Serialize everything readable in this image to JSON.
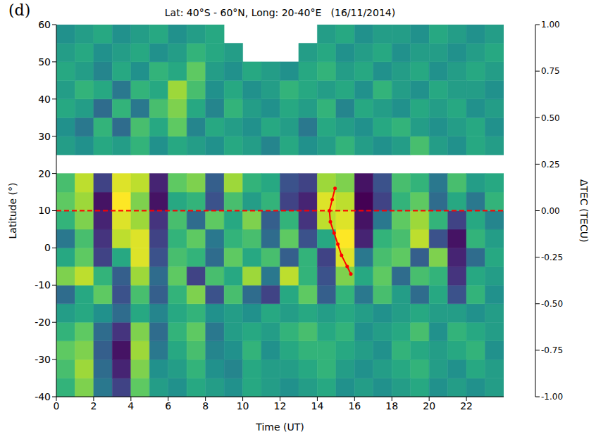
{
  "chart_data": {
    "type": "heatmap",
    "panel_label": "(d)",
    "title": "Lat: 40°S - 60°N, Long: 20-40°E   (16/11/2014)",
    "x_label": "Time (UT)",
    "y_label": "Latitude (°)",
    "xlim": [
      0,
      24
    ],
    "xticks": [
      0,
      2,
      4,
      6,
      8,
      10,
      12,
      14,
      16,
      18,
      20,
      22
    ],
    "ylim": [
      -40,
      60
    ],
    "yticks": [
      -40,
      -30,
      -20,
      -10,
      0,
      10,
      20,
      30,
      40,
      50,
      60
    ],
    "time_bins": [
      0,
      1,
      2,
      3,
      4,
      5,
      6,
      7,
      8,
      9,
      10,
      11,
      12,
      13,
      14,
      15,
      16,
      17,
      18,
      19,
      20,
      21,
      22,
      23,
      24
    ],
    "latitude_bins": [
      -40,
      -35,
      -30,
      -25,
      -20,
      -15,
      -10,
      -5,
      0,
      5,
      10,
      15,
      20,
      25,
      30,
      35,
      40,
      45,
      50,
      55,
      60
    ],
    "cells": [
      [
        0.3,
        0.6,
        -0.2,
        -0.6,
        0.5,
        0.1,
        0.0,
        0.2,
        0.1,
        0.0,
        0.2,
        0.1,
        0.0,
        0.1,
        0.2,
        0.0,
        0.1,
        0.0,
        0.1,
        0.2,
        0.0,
        0.1,
        0.0,
        0.1
      ],
      [
        0.4,
        0.7,
        -0.3,
        -0.8,
        0.6,
        0.0,
        0.1,
        0.3,
        0.0,
        -0.1,
        0.2,
        0.1,
        0.1,
        0.2,
        0.3,
        0.1,
        0.0,
        0.1,
        0.2,
        0.3,
        0.1,
        0.0,
        0.2,
        0.1
      ],
      [
        0.5,
        0.6,
        -0.4,
        -0.9,
        0.7,
        -0.2,
        0.2,
        0.4,
        -0.1,
        0.0,
        0.3,
        0.0,
        0.2,
        0.3,
        0.3,
        0.2,
        0.1,
        0.0,
        0.3,
        0.2,
        0.1,
        0.2,
        0.3,
        0.0
      ],
      [
        0.3,
        0.5,
        -0.3,
        -0.7,
        0.6,
        -0.3,
        0.3,
        0.5,
        -0.2,
        0.1,
        0.2,
        0.1,
        0.3,
        0.4,
        0.2,
        0.3,
        0.0,
        0.1,
        0.2,
        0.4,
        0.0,
        0.3,
        0.2,
        0.1
      ],
      [
        0.1,
        0.2,
        0.0,
        -0.3,
        0.2,
        -0.1,
        0.2,
        0.3,
        0.0,
        0.1,
        0.0,
        0.2,
        0.1,
        0.2,
        0.1,
        0.2,
        0.1,
        0.0,
        0.1,
        0.2,
        0.1,
        0.1,
        0.0,
        0.1
      ],
      [
        -0.3,
        0.2,
        0.5,
        -0.5,
        0.4,
        -0.4,
        0.3,
        0.6,
        -0.5,
        0.4,
        -0.3,
        -0.6,
        0.2,
        0.5,
        -0.4,
        0.3,
        -0.2,
        0.4,
        0.1,
        -0.3,
        0.2,
        -0.5,
        0.3,
        0.0
      ],
      [
        0.6,
        0.8,
        0.3,
        -0.4,
        0.7,
        -0.3,
        0.5,
        -0.6,
        0.4,
        0.2,
        0.7,
        -0.2,
        0.8,
        0.3,
        -0.5,
        0.6,
        0.2,
        0.5,
        -0.3,
        0.4,
        0.3,
        -0.7,
        0.2,
        0.1
      ],
      [
        0.2,
        0.5,
        -0.6,
        0.2,
        0.9,
        -0.5,
        0.4,
        0.3,
        -0.3,
        0.5,
        0.2,
        0.4,
        -0.4,
        0.3,
        -0.6,
        0.9,
        -0.2,
        0.4,
        0.5,
        -0.4,
        0.6,
        -0.8,
        -0.3,
        0.2
      ],
      [
        -0.2,
        0.4,
        -0.7,
        0.8,
        0.9,
        -0.6,
        0.3,
        0.5,
        -0.2,
        0.3,
        0.4,
        -0.3,
        0.5,
        -0.5,
        0.2,
        1.0,
        -0.8,
        0.3,
        0.4,
        0.8,
        -0.5,
        -0.9,
        0.3,
        0.1
      ],
      [
        0.3,
        0.6,
        -0.8,
        0.9,
        0.7,
        -0.7,
        0.4,
        -0.3,
        0.5,
        0.2,
        0.6,
        -0.4,
        0.3,
        -0.7,
        0.8,
        0.9,
        -0.9,
        -0.2,
        0.5,
        0.7,
        0.3,
        -0.6,
        0.2,
        -0.1
      ],
      [
        0.5,
        0.7,
        -0.9,
        1.0,
        0.6,
        -0.9,
        0.2,
        0.3,
        -0.5,
        0.4,
        0.1,
        0.3,
        -0.6,
        -0.8,
        0.9,
        0.8,
        -1.0,
        -0.6,
        0.3,
        0.5,
        -0.3,
        0.2,
        -0.2,
        0.3
      ],
      [
        0.4,
        0.8,
        -0.6,
        0.9,
        0.8,
        -0.8,
        0.5,
        0.6,
        -0.4,
        0.7,
        0.3,
        0.2,
        -0.5,
        -0.6,
        0.7,
        0.6,
        -0.9,
        -0.5,
        0.4,
        0.3,
        -0.2,
        0.4,
        0.1,
        0.2
      ],
      [
        null,
        null,
        null,
        null,
        null,
        null,
        null,
        null,
        null,
        null,
        null,
        null,
        null,
        null,
        null,
        null,
        null,
        null,
        null,
        null,
        null,
        null,
        null,
        null
      ],
      [
        0.1,
        0.0,
        0.2,
        0.1,
        0.3,
        0.0,
        0.2,
        0.1,
        0.0,
        0.2,
        0.1,
        -0.1,
        0.2,
        0.0,
        0.1,
        0.3,
        0.1,
        0.0,
        0.1,
        0.4,
        0.1,
        0.0,
        0.2,
        0.1
      ],
      [
        0.0,
        -0.2,
        0.3,
        -0.3,
        0.4,
        0.2,
        0.5,
        -0.1,
        0.2,
        0.1,
        0.0,
        0.2,
        0.1,
        -0.2,
        0.2,
        0.1,
        0.0,
        0.2,
        0.3,
        0.1,
        0.0,
        0.1,
        0.2,
        0.0
      ],
      [
        0.2,
        0.1,
        -0.3,
        0.3,
        -0.2,
        0.4,
        0.6,
        0.2,
        -0.1,
        0.3,
        0.1,
        0.0,
        0.2,
        0.1,
        0.3,
        -0.1,
        0.2,
        0.1,
        0.0,
        0.2,
        0.1,
        0.2,
        0.0,
        0.1
      ],
      [
        0.1,
        0.3,
        0.2,
        -0.2,
        0.3,
        0.2,
        0.7,
        0.4,
        0.0,
        0.2,
        0.0,
        0.1,
        0.3,
        0.2,
        0.1,
        0.2,
        0.0,
        0.3,
        0.1,
        0.0,
        0.2,
        0.1,
        0.1,
        0.0
      ],
      [
        0.2,
        0.1,
        -0.1,
        0.2,
        0.0,
        0.3,
        0.2,
        0.5,
        0.1,
        0.0,
        0.2,
        0.1,
        0.0,
        0.2,
        0.3,
        0.1,
        0.2,
        0.0,
        0.1,
        0.2,
        0.0,
        0.1,
        0.2,
        0.1
      ],
      [
        0.1,
        0.2,
        0.0,
        0.1,
        0.2,
        0.0,
        0.1,
        0.3,
        0.2,
        0.1,
        null,
        null,
        null,
        0.1,
        0.2,
        0.0,
        0.1,
        0.2,
        0.0,
        0.1,
        0.1,
        0.0,
        0.1,
        0.2
      ],
      [
        0.0,
        0.1,
        0.2,
        0.0,
        0.1,
        0.2,
        0.0,
        0.1,
        0.2,
        null,
        null,
        null,
        null,
        null,
        0.1,
        0.2,
        0.0,
        0.1,
        0.1,
        0.0,
        0.2,
        0.1,
        0.0,
        0.1
      ]
    ],
    "colorbar": {
      "label": "ΔTEC (TECU)",
      "range": [
        -1,
        1
      ],
      "ticks": [
        {
          "value": -1,
          "label": "-1.00"
        },
        -0.75,
        {
          "value": -0.5,
          "label": "-0.50"
        },
        -0.25,
        {
          "value": 0,
          "label": "0.00"
        },
        0.25,
        {
          "value": 0.5,
          "label": "0.50"
        },
        0.75,
        {
          "value": 1,
          "label": "1.00"
        }
      ]
    },
    "reference_line": {
      "y": 10,
      "color": "#ff0000",
      "line_style": "dashed"
    },
    "track": {
      "x": [
        14.95,
        14.8,
        14.65,
        14.7,
        14.9,
        15.1,
        15.3,
        15.6,
        15.8
      ],
      "y": [
        16,
        13,
        10,
        7,
        4,
        1,
        -2,
        -5,
        -7
      ],
      "color": "#ff0000",
      "marker": "dot"
    }
  }
}
